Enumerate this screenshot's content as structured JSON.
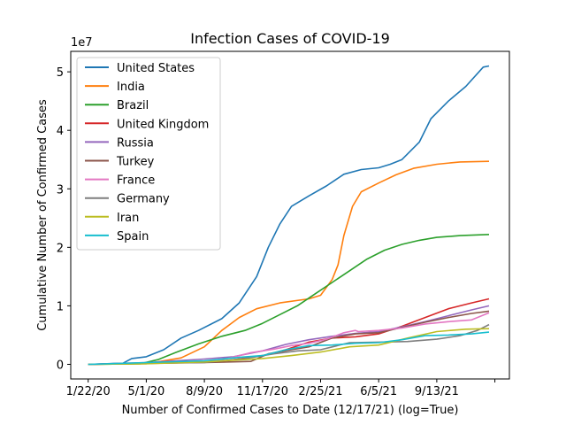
{
  "chart_data": {
    "type": "line",
    "title": "Infection Cases of COVID-19",
    "xlabel": "Number of Confirmed Cases to Date (12/17/21) (log=True)",
    "ylabel": "Cumulative Number of Confirmed Cases",
    "y_multiplier_label": "1e7",
    "xlim": [
      -30,
      725
    ],
    "ylim": [
      -2.5,
      53.5
    ],
    "y_unit": "1e7 cases (values in millions)",
    "x_ticks": [
      {
        "day": 0,
        "label": "1/22/20"
      },
      {
        "day": 100,
        "label": "5/1/20"
      },
      {
        "day": 200,
        "label": "8/9/20"
      },
      {
        "day": 300,
        "label": "11/17/20"
      },
      {
        "day": 400,
        "label": "2/25/21"
      },
      {
        "day": 500,
        "label": "6/5/21"
      },
      {
        "day": 600,
        "label": "9/13/21"
      },
      {
        "day": 700,
        "label": ""
      }
    ],
    "y_ticks": [
      {
        "value": 0,
        "label": "0"
      },
      {
        "value": 10,
        "label": "1"
      },
      {
        "value": 20,
        "label": "2"
      },
      {
        "value": 30,
        "label": "3"
      },
      {
        "value": 40,
        "label": "4"
      },
      {
        "value": 50,
        "label": "5"
      }
    ],
    "legend_position": "top-left",
    "grid": false,
    "series": [
      {
        "name": "United States",
        "color": "#1f77b4",
        "points": [
          [
            0,
            0
          ],
          [
            60,
            0.2
          ],
          [
            75,
            1.0
          ],
          [
            100,
            1.3
          ],
          [
            130,
            2.5
          ],
          [
            160,
            4.5
          ],
          [
            190,
            5.8
          ],
          [
            230,
            7.8
          ],
          [
            260,
            10.5
          ],
          [
            290,
            15
          ],
          [
            310,
            20
          ],
          [
            330,
            24
          ],
          [
            350,
            27
          ],
          [
            380,
            28.8
          ],
          [
            410,
            30.5
          ],
          [
            440,
            32.5
          ],
          [
            470,
            33.3
          ],
          [
            500,
            33.6
          ],
          [
            520,
            34.2
          ],
          [
            540,
            35
          ],
          [
            570,
            38
          ],
          [
            590,
            42
          ],
          [
            620,
            45
          ],
          [
            650,
            47.5
          ],
          [
            680,
            50.8
          ],
          [
            690,
            51
          ]
        ]
      },
      {
        "name": "India",
        "color": "#ff7f0e",
        "points": [
          [
            0,
            0
          ],
          [
            100,
            0.1
          ],
          [
            160,
            1.1
          ],
          [
            200,
            3.0
          ],
          [
            230,
            5.8
          ],
          [
            260,
            8.0
          ],
          [
            290,
            9.5
          ],
          [
            330,
            10.5
          ],
          [
            380,
            11.2
          ],
          [
            400,
            11.8
          ],
          [
            420,
            14.5
          ],
          [
            430,
            17
          ],
          [
            440,
            22
          ],
          [
            455,
            27
          ],
          [
            470,
            29.5
          ],
          [
            500,
            31
          ],
          [
            530,
            32.4
          ],
          [
            560,
            33.5
          ],
          [
            600,
            34.2
          ],
          [
            640,
            34.6
          ],
          [
            690,
            34.7
          ]
        ]
      },
      {
        "name": "Brazil",
        "color": "#2ca02c",
        "points": [
          [
            0,
            0
          ],
          [
            90,
            0.1
          ],
          [
            120,
            0.8
          ],
          [
            150,
            2.0
          ],
          [
            190,
            3.5
          ],
          [
            230,
            4.8
          ],
          [
            270,
            5.8
          ],
          [
            300,
            7
          ],
          [
            330,
            8.5
          ],
          [
            360,
            10
          ],
          [
            390,
            12
          ],
          [
            420,
            14
          ],
          [
            450,
            16
          ],
          [
            480,
            18
          ],
          [
            510,
            19.5
          ],
          [
            540,
            20.5
          ],
          [
            570,
            21.2
          ],
          [
            600,
            21.7
          ],
          [
            640,
            22.0
          ],
          [
            690,
            22.2
          ]
        ]
      },
      {
        "name": "United Kingdom",
        "color": "#d62728",
        "points": [
          [
            0,
            0
          ],
          [
            150,
            0.3
          ],
          [
            230,
            0.5
          ],
          [
            300,
            1.5
          ],
          [
            340,
            2.5
          ],
          [
            380,
            3.8
          ],
          [
            420,
            4.5
          ],
          [
            460,
            4.7
          ],
          [
            500,
            5.2
          ],
          [
            540,
            6.5
          ],
          [
            580,
            8.0
          ],
          [
            620,
            9.5
          ],
          [
            660,
            10.5
          ],
          [
            690,
            11.2
          ]
        ]
      },
      {
        "name": "Russia",
        "color": "#9467bd",
        "points": [
          [
            0,
            0
          ],
          [
            100,
            0.3
          ],
          [
            150,
            0.6
          ],
          [
            200,
            0.9
          ],
          [
            250,
            1.3
          ],
          [
            300,
            2.3
          ],
          [
            340,
            3.4
          ],
          [
            380,
            4.2
          ],
          [
            420,
            4.8
          ],
          [
            460,
            5.3
          ],
          [
            500,
            5.6
          ],
          [
            540,
            6.4
          ],
          [
            580,
            7.3
          ],
          [
            620,
            8.3
          ],
          [
            660,
            9.3
          ],
          [
            690,
            10.0
          ]
        ]
      },
      {
        "name": "Turkey",
        "color": "#8c564b",
        "points": [
          [
            0,
            0
          ],
          [
            100,
            0.15
          ],
          [
            200,
            0.3
          ],
          [
            280,
            0.5
          ],
          [
            310,
            1.8
          ],
          [
            350,
            2.5
          ],
          [
            380,
            3.0
          ],
          [
            420,
            4.5
          ],
          [
            460,
            5.2
          ],
          [
            500,
            5.4
          ],
          [
            540,
            6.3
          ],
          [
            580,
            7.2
          ],
          [
            620,
            8.0
          ],
          [
            660,
            8.7
          ],
          [
            690,
            9.1
          ]
        ]
      },
      {
        "name": "France",
        "color": "#e377c2",
        "points": [
          [
            0,
            0
          ],
          [
            100,
            0.15
          ],
          [
            200,
            0.5
          ],
          [
            240,
            1.0
          ],
          [
            280,
            2.0
          ],
          [
            320,
            2.6
          ],
          [
            350,
            3.2
          ],
          [
            380,
            3.6
          ],
          [
            410,
            4.3
          ],
          [
            440,
            5.4
          ],
          [
            460,
            5.8
          ],
          [
            465,
            5.6
          ],
          [
            500,
            5.8
          ],
          [
            540,
            6.2
          ],
          [
            580,
            6.9
          ],
          [
            620,
            7.3
          ],
          [
            660,
            7.6
          ],
          [
            690,
            8.8
          ]
        ]
      },
      {
        "name": "Germany",
        "color": "#7f7f7f",
        "points": [
          [
            0,
            0
          ],
          [
            100,
            0.2
          ],
          [
            200,
            0.3
          ],
          [
            270,
            1.0
          ],
          [
            320,
            1.8
          ],
          [
            360,
            2.3
          ],
          [
            400,
            2.5
          ],
          [
            450,
            3.7
          ],
          [
            500,
            3.8
          ],
          [
            550,
            3.9
          ],
          [
            600,
            4.3
          ],
          [
            640,
            4.9
          ],
          [
            670,
            5.8
          ],
          [
            690,
            6.8
          ]
        ]
      },
      {
        "name": "Iran",
        "color": "#bcbd22",
        "points": [
          [
            0,
            0
          ],
          [
            100,
            0.1
          ],
          [
            200,
            0.4
          ],
          [
            300,
            1.0
          ],
          [
            350,
            1.5
          ],
          [
            400,
            2.1
          ],
          [
            450,
            3.0
          ],
          [
            500,
            3.3
          ],
          [
            550,
            4.5
          ],
          [
            600,
            5.6
          ],
          [
            650,
            6.0
          ],
          [
            690,
            6.1
          ]
        ]
      },
      {
        "name": "Spain",
        "color": "#17becf",
        "points": [
          [
            0,
            0
          ],
          [
            100,
            0.3
          ],
          [
            200,
            0.6
          ],
          [
            260,
            1.2
          ],
          [
            300,
            1.5
          ],
          [
            340,
            2.5
          ],
          [
            380,
            3.2
          ],
          [
            420,
            3.3
          ],
          [
            460,
            3.6
          ],
          [
            500,
            3.7
          ],
          [
            540,
            4.2
          ],
          [
            580,
            4.9
          ],
          [
            620,
            5.0
          ],
          [
            660,
            5.2
          ],
          [
            690,
            5.5
          ]
        ]
      }
    ]
  }
}
